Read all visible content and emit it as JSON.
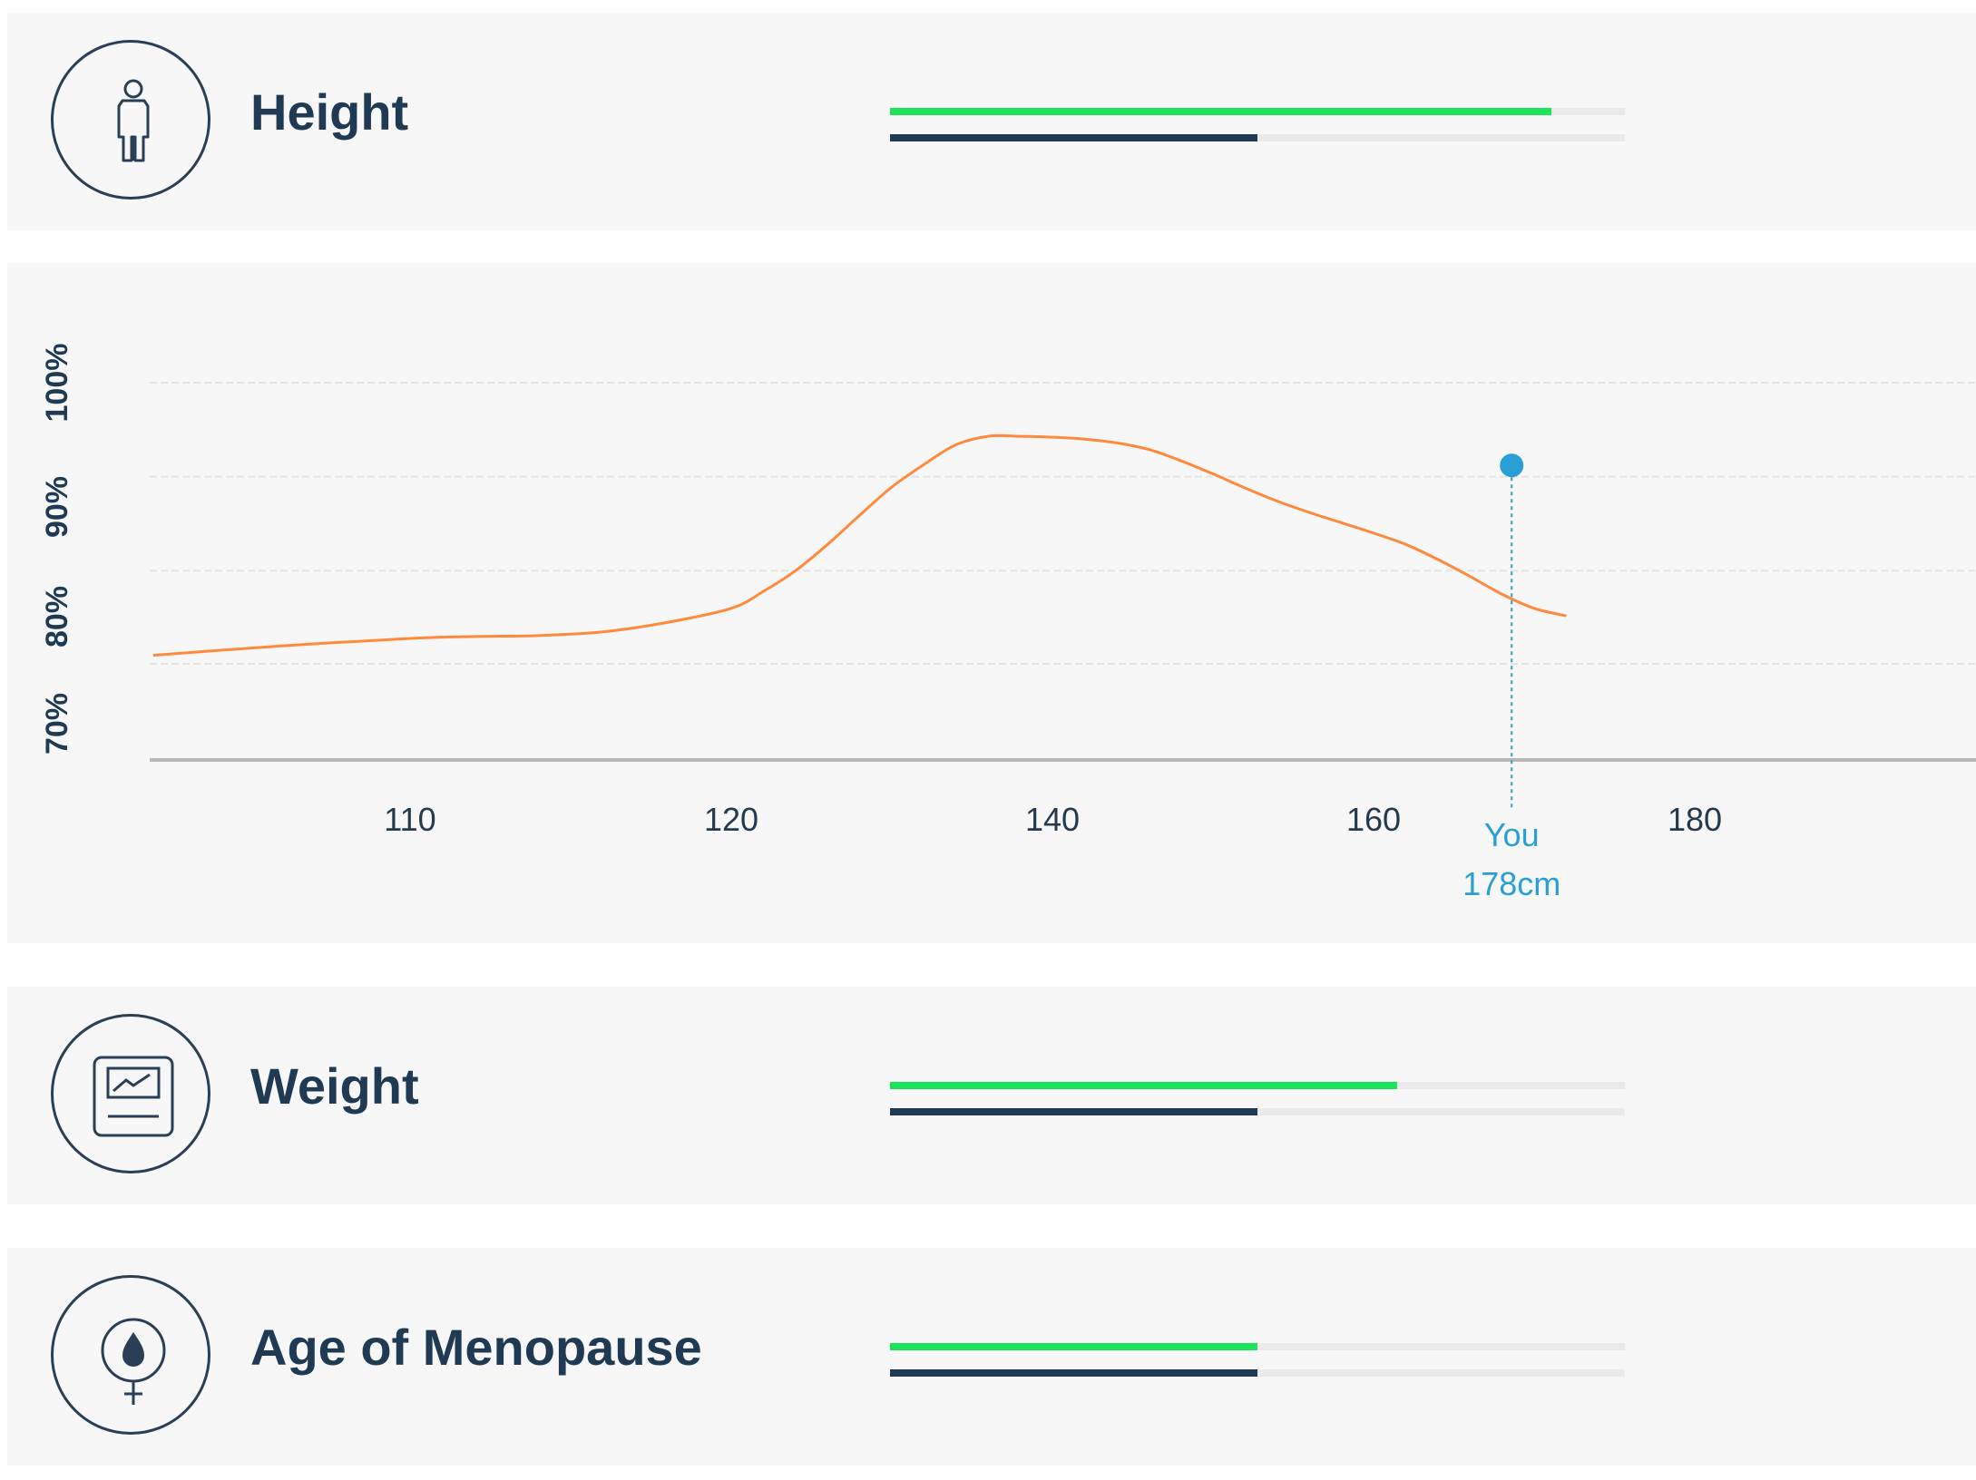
{
  "rows": [
    {
      "title": "Height",
      "icon": "person-icon",
      "green_fill": 0.9,
      "navy_fill": 0.5
    },
    {
      "title": "Weight",
      "icon": "scale-icon",
      "green_fill": 0.69,
      "navy_fill": 0.5
    },
    {
      "title": "Age of Menopause",
      "icon": "female-drop-icon",
      "green_fill": 0.5,
      "navy_fill": 0.5
    }
  ],
  "colors": {
    "green": "#1de35b",
    "navy": "#1f3a52",
    "curve": "#ff8a3d",
    "marker": "#2a9fd6",
    "card_background": "#f7f7f7"
  },
  "chart_data": {
    "type": "line",
    "x_ticks": [
      "110",
      "120",
      "140",
      "160",
      "180"
    ],
    "y_ticks": [
      "70%",
      "80%",
      "90%",
      "100%"
    ],
    "ylim": [
      70,
      100
    ],
    "grid": true,
    "series": [
      {
        "curve_points": [
          [
            102,
            71.0
          ],
          [
            106,
            72.0
          ],
          [
            110,
            72.8
          ],
          [
            112,
            73.0
          ],
          [
            114,
            73.1
          ],
          [
            116,
            73.5
          ],
          [
            118,
            74.5
          ],
          [
            120,
            76.0
          ],
          [
            122,
            77.8
          ],
          [
            124,
            80.0
          ],
          [
            126,
            82.8
          ],
          [
            128,
            85.9
          ],
          [
            130,
            88.9
          ],
          [
            132,
            91.3
          ],
          [
            134,
            93.4
          ],
          [
            136,
            94.3
          ],
          [
            138,
            94.3
          ],
          [
            140,
            94.2
          ],
          [
            142,
            94.0
          ],
          [
            144,
            93.6
          ],
          [
            146,
            92.9
          ],
          [
            148,
            91.7
          ],
          [
            150,
            90.3
          ],
          [
            152,
            88.8
          ],
          [
            154,
            87.4
          ],
          [
            156,
            86.2
          ],
          [
            158,
            85.1
          ],
          [
            160,
            84.0
          ],
          [
            162,
            82.8
          ],
          [
            164,
            81.2
          ],
          [
            166,
            79.4
          ],
          [
            168,
            77.5
          ],
          [
            170,
            76.0
          ],
          [
            172,
            75.2
          ]
        ]
      }
    ],
    "marker": {
      "x": 168.6,
      "y": 91.2,
      "label": "You",
      "value_label": "178cm"
    }
  }
}
